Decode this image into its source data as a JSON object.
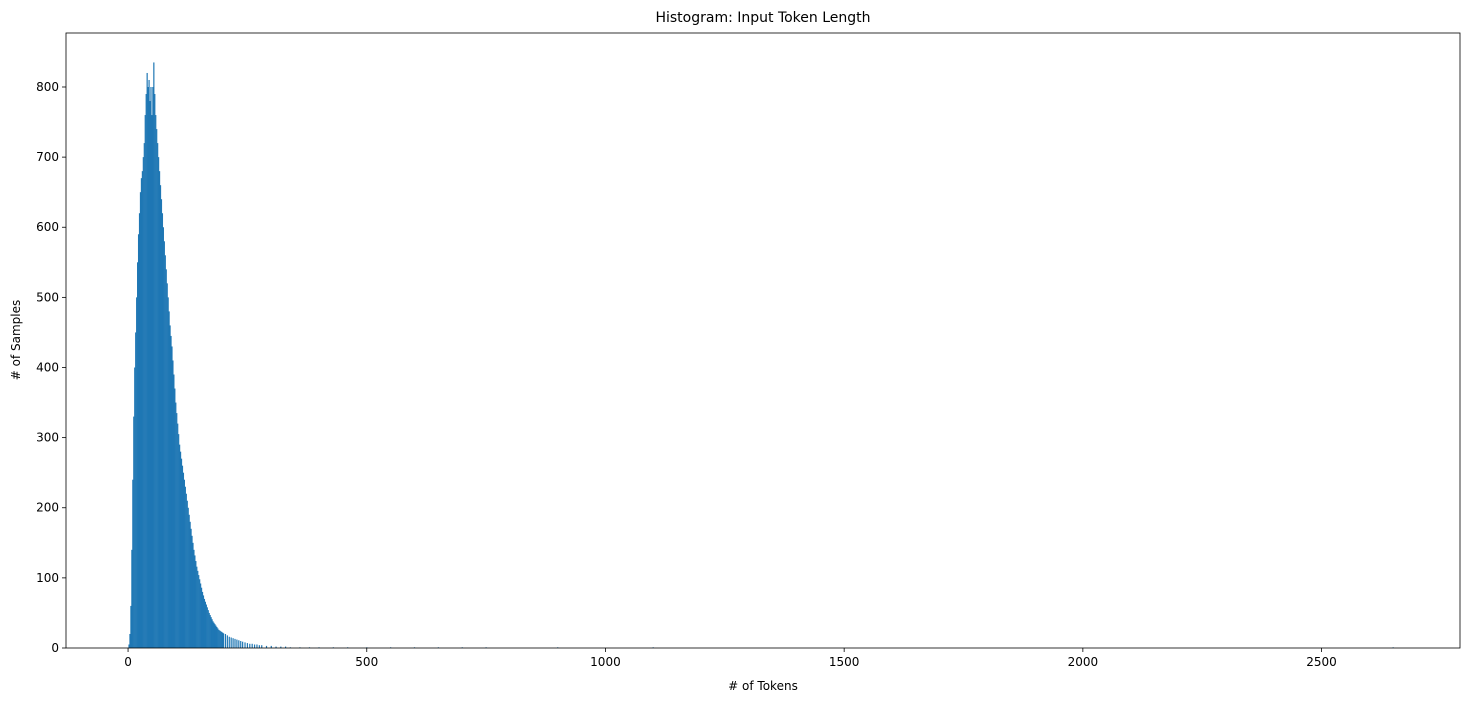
{
  "chart_data": {
    "type": "bar",
    "title": "Histogram: Input Token Length",
    "xlabel": "# of Tokens",
    "ylabel": "# of Samples",
    "xlim": [
      -130,
      2790
    ],
    "ylim": [
      0,
      877
    ],
    "xticks": [
      "0",
      "500",
      "1000",
      "1500",
      "2000",
      "2500"
    ],
    "yticks": [
      "0",
      "100",
      "200",
      "300",
      "400",
      "500",
      "600",
      "700",
      "800"
    ],
    "bar_color": "#1f77b4",
    "grid": false,
    "legend": "none",
    "bin_width": 2.5,
    "bins": [
      [
        2,
        5
      ],
      [
        4,
        20
      ],
      [
        6,
        60
      ],
      [
        8,
        140
      ],
      [
        10,
        240
      ],
      [
        12,
        330
      ],
      [
        14,
        400
      ],
      [
        16,
        450
      ],
      [
        18,
        500
      ],
      [
        20,
        550
      ],
      [
        22,
        590
      ],
      [
        24,
        620
      ],
      [
        26,
        650
      ],
      [
        28,
        670
      ],
      [
        30,
        680
      ],
      [
        32,
        700
      ],
      [
        34,
        720
      ],
      [
        36,
        760
      ],
      [
        38,
        790
      ],
      [
        40,
        820
      ],
      [
        42,
        800
      ],
      [
        44,
        810
      ],
      [
        46,
        780
      ],
      [
        48,
        800
      ],
      [
        50,
        760
      ],
      [
        52,
        800
      ],
      [
        54,
        835
      ],
      [
        56,
        790
      ],
      [
        58,
        760
      ],
      [
        60,
        740
      ],
      [
        62,
        720
      ],
      [
        64,
        700
      ],
      [
        66,
        680
      ],
      [
        68,
        660
      ],
      [
        70,
        640
      ],
      [
        72,
        620
      ],
      [
        74,
        600
      ],
      [
        76,
        580
      ],
      [
        78,
        560
      ],
      [
        80,
        540
      ],
      [
        82,
        520
      ],
      [
        84,
        500
      ],
      [
        86,
        480
      ],
      [
        88,
        460
      ],
      [
        90,
        445
      ],
      [
        92,
        430
      ],
      [
        94,
        410
      ],
      [
        96,
        390
      ],
      [
        98,
        370
      ],
      [
        100,
        350
      ],
      [
        102,
        335
      ],
      [
        104,
        320
      ],
      [
        106,
        305
      ],
      [
        108,
        290
      ],
      [
        110,
        280
      ],
      [
        112,
        270
      ],
      [
        114,
        260
      ],
      [
        116,
        250
      ],
      [
        118,
        240
      ],
      [
        120,
        230
      ],
      [
        122,
        220
      ],
      [
        124,
        210
      ],
      [
        126,
        200
      ],
      [
        128,
        190
      ],
      [
        130,
        180
      ],
      [
        132,
        170
      ],
      [
        134,
        160
      ],
      [
        136,
        150
      ],
      [
        138,
        140
      ],
      [
        140,
        132
      ],
      [
        142,
        124
      ],
      [
        144,
        116
      ],
      [
        146,
        110
      ],
      [
        148,
        104
      ],
      [
        150,
        98
      ],
      [
        152,
        92
      ],
      [
        154,
        86
      ],
      [
        156,
        80
      ],
      [
        158,
        75
      ],
      [
        160,
        70
      ],
      [
        162,
        66
      ],
      [
        164,
        62
      ],
      [
        166,
        58
      ],
      [
        168,
        54
      ],
      [
        170,
        50
      ],
      [
        172,
        47
      ],
      [
        174,
        44
      ],
      [
        176,
        41
      ],
      [
        178,
        38
      ],
      [
        180,
        36
      ],
      [
        182,
        34
      ],
      [
        184,
        32
      ],
      [
        186,
        30
      ],
      [
        188,
        28
      ],
      [
        190,
        26
      ],
      [
        192,
        25
      ],
      [
        194,
        24
      ],
      [
        196,
        23
      ],
      [
        198,
        22
      ],
      [
        200,
        21
      ],
      [
        204,
        20
      ],
      [
        208,
        18
      ],
      [
        212,
        16
      ],
      [
        216,
        15
      ],
      [
        220,
        14
      ],
      [
        224,
        13
      ],
      [
        228,
        12
      ],
      [
        232,
        11
      ],
      [
        236,
        10
      ],
      [
        240,
        9
      ],
      [
        245,
        8
      ],
      [
        250,
        7
      ],
      [
        255,
        6
      ],
      [
        260,
        6
      ],
      [
        265,
        5
      ],
      [
        270,
        5
      ],
      [
        275,
        4
      ],
      [
        280,
        4
      ],
      [
        290,
        3
      ],
      [
        300,
        3
      ],
      [
        310,
        2
      ],
      [
        320,
        2
      ],
      [
        330,
        2
      ],
      [
        340,
        1
      ],
      [
        360,
        1
      ],
      [
        380,
        1
      ],
      [
        400,
        1
      ],
      [
        430,
        1
      ],
      [
        460,
        1
      ],
      [
        500,
        1
      ],
      [
        550,
        1
      ],
      [
        600,
        1
      ],
      [
        650,
        1
      ],
      [
        700,
        1
      ],
      [
        750,
        1
      ],
      [
        900,
        1
      ],
      [
        1100,
        1
      ],
      [
        2650,
        1
      ]
    ]
  }
}
